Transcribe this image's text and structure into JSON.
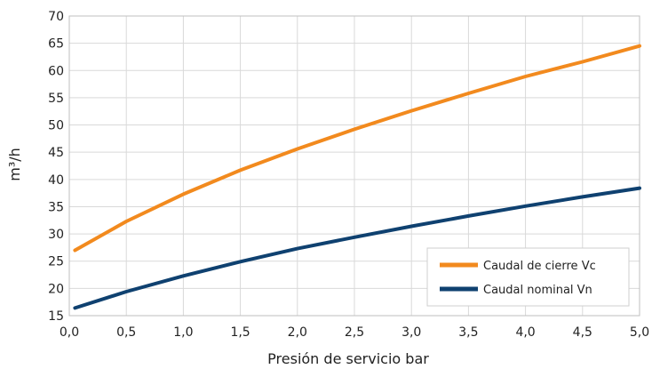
{
  "chart_data": {
    "type": "line",
    "title": "",
    "xlabel": "Presión de servicio bar",
    "ylabel": "m³/h",
    "xlim": [
      0,
      5
    ],
    "ylim": [
      15,
      70
    ],
    "x_ticks": [
      "0,0",
      "0,5",
      "1,0",
      "1,5",
      "2,0",
      "2,5",
      "3,0",
      "3,5",
      "4,0",
      "4,5",
      "5,0"
    ],
    "y_ticks": [
      "15",
      "20",
      "25",
      "30",
      "35",
      "40",
      "45",
      "50",
      "55",
      "60",
      "65",
      "70"
    ],
    "grid": true,
    "legend_position": "bottom-right",
    "series": [
      {
        "name": "Caudal de cierre Vc",
        "color": "#f28a1e",
        "x": [
          0.05,
          0.5,
          1.0,
          1.5,
          2.0,
          2.5,
          3.0,
          3.5,
          4.0,
          4.5,
          5.0
        ],
        "y": [
          27.0,
          32.3,
          37.3,
          41.7,
          45.6,
          49.2,
          52.6,
          55.8,
          58.9,
          61.6,
          64.5
        ]
      },
      {
        "name": "Caudal nominal Vn",
        "color": "#0f4170",
        "x": [
          0.05,
          0.5,
          1.0,
          1.5,
          2.0,
          2.5,
          3.0,
          3.5,
          4.0,
          4.5,
          5.0
        ],
        "y": [
          16.4,
          19.4,
          22.3,
          24.9,
          27.3,
          29.4,
          31.4,
          33.3,
          35.1,
          36.8,
          38.4
        ]
      }
    ]
  }
}
